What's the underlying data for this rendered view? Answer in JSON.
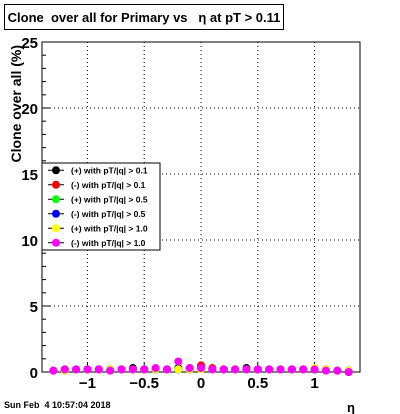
{
  "title": "Clone  over all for Primary vs   η at pT > 0.11",
  "timestamp": "Sun Feb  4 10:57:04 2018",
  "chart_data": {
    "type": "scatter",
    "title": "Clone  over all for Primary vs   η at pT > 0.11",
    "xlabel": "η",
    "ylabel": "Clone  over all (%)",
    "xlim": [
      -1.4,
      1.4
    ],
    "ylim": [
      0,
      25
    ],
    "grid": true,
    "legend_position": "middle-left",
    "x_ticks": [
      -1,
      -0.5,
      0,
      0.5,
      1
    ],
    "x_tick_labels": [
      "−1",
      "−0.5",
      "0",
      "0.5",
      "1"
    ],
    "y_ticks": [
      0,
      5,
      10,
      15,
      20,
      25
    ],
    "y_tick_labels": [
      "0",
      "5",
      "10",
      "15",
      "20",
      "25"
    ],
    "x": [
      -1.3,
      -1.2,
      -1.1,
      -1.0,
      -0.9,
      -0.8,
      -0.7,
      -0.6,
      -0.5,
      -0.4,
      -0.3,
      -0.2,
      -0.1,
      0.0,
      0.1,
      0.2,
      0.3,
      0.4,
      0.5,
      0.6,
      0.7,
      0.8,
      0.9,
      1.0,
      1.1,
      1.2,
      1.3
    ],
    "series": [
      {
        "name": "(+) with pT/|q| > 0.1",
        "color": "#000000",
        "values": [
          0.1,
          0.2,
          0.2,
          0.2,
          0.2,
          0.2,
          0.2,
          0.3,
          0.2,
          0.2,
          0.2,
          0.3,
          0.2,
          0.4,
          0.2,
          0.2,
          0.2,
          0.3,
          0.2,
          0.2,
          0.2,
          0.2,
          0.2,
          0.2,
          0.2,
          0.1,
          0.0
        ]
      },
      {
        "name": "(-) with pT/|q| > 0.1",
        "color": "#ff0000",
        "values": [
          0.1,
          0.2,
          0.2,
          0.2,
          0.2,
          0.2,
          0.2,
          0.2,
          0.2,
          0.2,
          0.2,
          0.2,
          0.3,
          0.5,
          0.3,
          0.2,
          0.2,
          0.2,
          0.2,
          0.2,
          0.2,
          0.2,
          0.2,
          0.2,
          0.2,
          0.1,
          0.1
        ]
      },
      {
        "name": "(+) with pT/|q| > 0.5",
        "color": "#00ff00",
        "values": [
          0.1,
          0.1,
          0.2,
          0.2,
          0.2,
          0.2,
          0.2,
          0.2,
          0.2,
          0.2,
          0.2,
          0.2,
          0.2,
          0.3,
          0.2,
          0.2,
          0.2,
          0.2,
          0.2,
          0.2,
          0.2,
          0.2,
          0.2,
          0.2,
          0.2,
          0.1,
          0.1
        ]
      },
      {
        "name": "(-) with pT/|q| > 0.5",
        "color": "#0000ff",
        "values": [
          0.1,
          0.1,
          0.2,
          0.2,
          0.2,
          0.2,
          0.2,
          0.2,
          0.2,
          0.2,
          0.2,
          0.2,
          0.2,
          0.3,
          0.2,
          0.2,
          0.2,
          0.2,
          0.2,
          0.2,
          0.2,
          0.2,
          0.2,
          0.2,
          0.2,
          0.1,
          0.1
        ]
      },
      {
        "name": "(+) with pT/|q| > 1.0",
        "color": "#ffff00",
        "values": [
          0.1,
          0.1,
          0.2,
          0.2,
          0.2,
          0.2,
          0.2,
          0.2,
          0.2,
          0.2,
          0.2,
          0.2,
          0.2,
          0.2,
          0.2,
          0.2,
          0.2,
          0.2,
          0.2,
          0.2,
          0.2,
          0.2,
          0.2,
          0.3,
          0.2,
          0.1,
          0.1
        ]
      },
      {
        "name": "(-) with pT/|q| > 1.0",
        "color": "#ff00ff",
        "values": [
          0.1,
          0.2,
          0.2,
          0.2,
          0.2,
          0.1,
          0.2,
          0.2,
          0.2,
          0.3,
          0.2,
          0.8,
          0.3,
          0.3,
          0.2,
          0.2,
          0.2,
          0.2,
          0.2,
          0.2,
          0.2,
          0.2,
          0.2,
          0.2,
          0.1,
          0.1,
          0.0
        ]
      }
    ]
  }
}
